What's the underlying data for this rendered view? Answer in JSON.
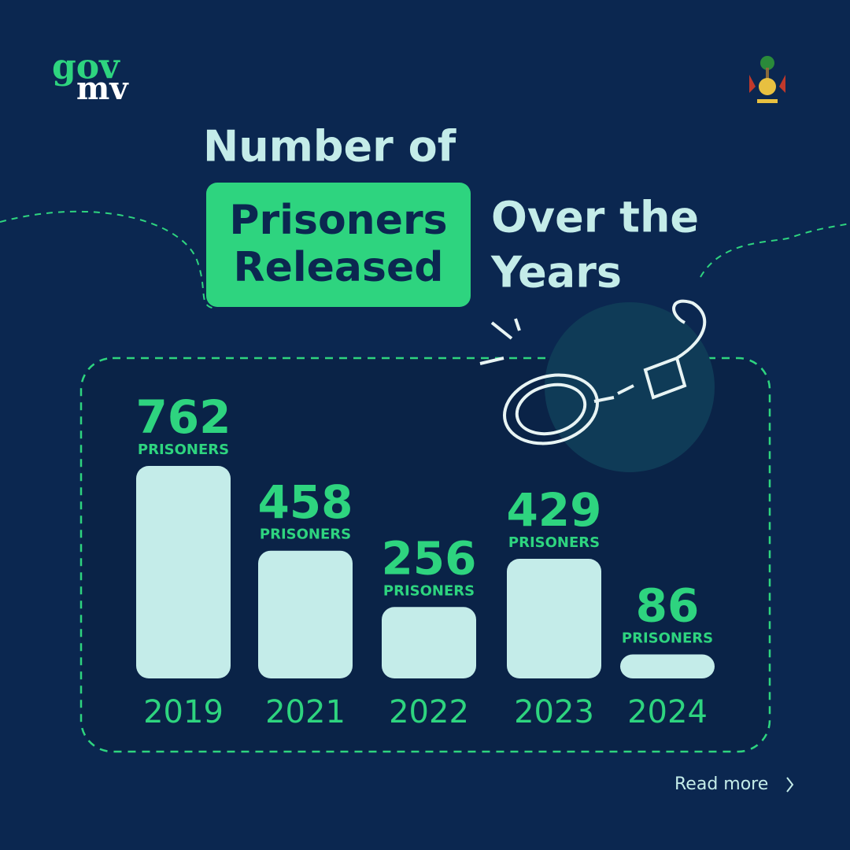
{
  "logo": {
    "top": "gov",
    "bottom": "mv"
  },
  "link": "Read more",
  "chart_data": {
    "type": "bar",
    "title": "Number of",
    "title_highlight": [
      "Prisoners",
      "Released"
    ],
    "title_end": [
      "Over the",
      "Years"
    ],
    "categories": [
      "2019",
      "2021",
      "2022",
      "2023",
      "2024"
    ],
    "values": [
      762,
      458,
      256,
      429,
      86
    ],
    "value_unit": "PRISONERS",
    "color": "#c4ece9"
  }
}
